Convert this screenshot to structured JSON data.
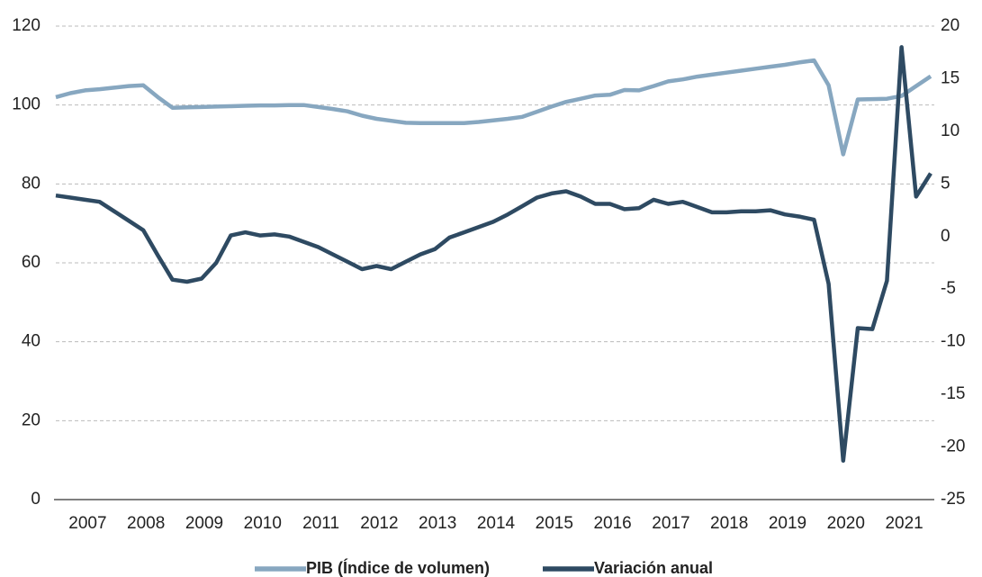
{
  "chart_data": {
    "type": "line",
    "categories": [
      null,
      null,
      "2007",
      null,
      null,
      null,
      "2008",
      null,
      null,
      null,
      "2009",
      null,
      null,
      null,
      "2010",
      null,
      null,
      null,
      "2011",
      null,
      null,
      null,
      "2012",
      null,
      null,
      null,
      "2013",
      null,
      null,
      null,
      "2014",
      null,
      null,
      null,
      "2015",
      null,
      null,
      null,
      "2016",
      null,
      null,
      null,
      "2017",
      null,
      null,
      null,
      "2018",
      null,
      null,
      null,
      "2019",
      null,
      null,
      null,
      "2020",
      null,
      null,
      null,
      "2021",
      null,
      null
    ],
    "series": [
      {
        "name": "PIB (Índice de volumen)",
        "color": "#87a7c0",
        "values": [
          102,
          103,
          103.7,
          104,
          104.4,
          104.8,
          105,
          102,
          99.3,
          99.4,
          99.5,
          99.6,
          99.7,
          99.8,
          99.9,
          99.9,
          100,
          100,
          99.5,
          99,
          98.4,
          97.3,
          96.5,
          96,
          95.5,
          95.4,
          95.4,
          95.4,
          95.4,
          95.7,
          96.1,
          96.5,
          97,
          98.3,
          99.6,
          100.8,
          101.6,
          102.4,
          102.6,
          103.8,
          103.7,
          104.8,
          106,
          106.5,
          107.2,
          107.7,
          108.2,
          108.7,
          109.2,
          109.7,
          110.2,
          110.8,
          111.3,
          105,
          87.5,
          101.4,
          101.5,
          101.6,
          102.3,
          104.8,
          107.3
        ]
      },
      {
        "name": "Variación anual",
        "color": "#2e4a62",
        "axis": "y2",
        "values": [
          3.9,
          3.7,
          3.5,
          3.3,
          2.4,
          1.5,
          0.6,
          -1.8,
          -4.1,
          -4.3,
          -4,
          -2.5,
          0.1,
          0.4,
          0.1,
          0.2,
          0,
          -0.5,
          -1,
          -1.7,
          -2.4,
          -3.1,
          -2.8,
          -3.1,
          -2.4,
          -1.7,
          -1.2,
          -0.1,
          0.4,
          0.9,
          1.4,
          2.1,
          2.9,
          3.7,
          4.1,
          4.3,
          3.8,
          3.1,
          3.1,
          2.6,
          2.7,
          3.5,
          3.1,
          3.3,
          2.8,
          2.3,
          2.3,
          2.4,
          2.4,
          2.5,
          2.1,
          1.9,
          1.6,
          -4.5,
          -21.3,
          -8.7,
          -8.8,
          -4.2,
          18,
          3.8,
          6
        ]
      }
    ],
    "ylim": [
      0,
      120
    ],
    "yticks": [
      0,
      20,
      40,
      60,
      80,
      100,
      120
    ],
    "y2lim": [
      -25,
      20
    ],
    "y2ticks": [
      -25,
      -20,
      -15,
      -10,
      -5,
      0,
      5,
      10,
      15,
      20
    ],
    "grid": true
  }
}
